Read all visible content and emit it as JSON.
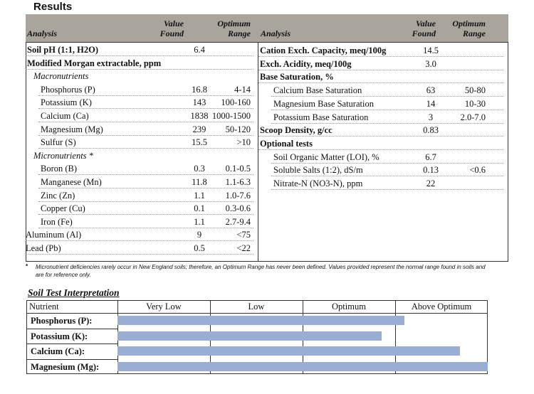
{
  "header": {
    "title": "Results"
  },
  "table": {
    "columns": {
      "analysis": "Analysis",
      "value": "Value Found",
      "optimum": "Optimum Range"
    },
    "left": [
      {
        "label": "Soil pH (1:1, H2O)",
        "value": "6.4",
        "level": "heading"
      },
      {
        "label": "Modified Morgan extractable, ppm",
        "level": "heading"
      },
      {
        "label": "Macronutrients",
        "level": "group"
      },
      {
        "label": "Phosphorus (P)",
        "value": "16.8",
        "optimum": "4-14",
        "level": "item"
      },
      {
        "label": "Potassium (K)",
        "value": "143",
        "optimum": "100-160",
        "level": "item"
      },
      {
        "label": "Calcium (Ca)",
        "value": "1838",
        "optimum": "1000-1500",
        "level": "item"
      },
      {
        "label": "Magnesium (Mg)",
        "value": "239",
        "optimum": "50-120",
        "level": "item"
      },
      {
        "label": "Sulfur (S)",
        "value": "15.5",
        "optimum": ">10",
        "level": "item"
      },
      {
        "label": "Micronutrients *",
        "level": "group"
      },
      {
        "label": "Boron (B)",
        "value": "0.3",
        "optimum": "0.1-0.5",
        "level": "item"
      },
      {
        "label": "Manganese (Mn)",
        "value": "11.8",
        "optimum": "1.1-6.3",
        "level": "item"
      },
      {
        "label": "Zinc (Zn)",
        "value": "1.1",
        "optimum": "1.0-7.6",
        "level": "item"
      },
      {
        "label": "Copper (Cu)",
        "value": "0.1",
        "optimum": "0.3-0.6",
        "level": "item"
      },
      {
        "label": "Iron (Fe)",
        "value": "1.1",
        "optimum": "2.7-9.4",
        "level": "item"
      },
      {
        "label": "Aluminum (Al)",
        "value": "9",
        "optimum": "<75",
        "level": "plain"
      },
      {
        "label": "Lead (Pb)",
        "value": "0.5",
        "optimum": "<22",
        "level": "plain"
      }
    ],
    "right": [
      {
        "label": "Cation Exch. Capacity, meq/100g",
        "value": "14.5",
        "level": "heading"
      },
      {
        "label": "Exch. Acidity, meq/100g",
        "value": "3.0",
        "level": "heading"
      },
      {
        "label": "Base Saturation, %",
        "level": "heading"
      },
      {
        "label": "Calcium Base Saturation",
        "value": "63",
        "optimum": "50-80",
        "level": "item"
      },
      {
        "label": "Magnesium Base Saturation",
        "value": "14",
        "optimum": "10-30",
        "level": "item"
      },
      {
        "label": "Potassium Base Saturation",
        "value": "3",
        "optimum": "2.0-7.0",
        "level": "item"
      },
      {
        "label": "Scoop Density, g/cc",
        "value": "0.83",
        "level": "heading"
      },
      {
        "label": "Optional tests",
        "level": "heading"
      },
      {
        "label": "Soil Organic Matter (LOI), %",
        "value": "6.7",
        "level": "item"
      },
      {
        "label": "Soluble Salts (1:2), dS/m",
        "value": "0.13",
        "optimum": "<0.6",
        "level": "item"
      },
      {
        "label": "Nitrate-N (NO3-N), ppm",
        "value": "22",
        "level": "item"
      }
    ]
  },
  "footnote": {
    "marker": "*",
    "text": "Micronutrient deficiencies rarely occur in New England soils; therefore, an Optimum Range has never been defined. Values provided represent the normal range found in soils and are for reference only."
  },
  "interpretation": {
    "title": "Soil Test Interpretation",
    "columns": [
      "Nutrient",
      "Very Low",
      "Low",
      "Optimum",
      "Above Optimum"
    ],
    "rows": [
      {
        "nutrient": "Phosphorus (P):",
        "level": 3.1
      },
      {
        "nutrient": "Potassium (K):",
        "level": 2.85
      },
      {
        "nutrient": "Calcium (Ca):",
        "level": 3.7
      },
      {
        "nutrient": "Magnesium (Mg):",
        "level": 4
      }
    ]
  }
}
